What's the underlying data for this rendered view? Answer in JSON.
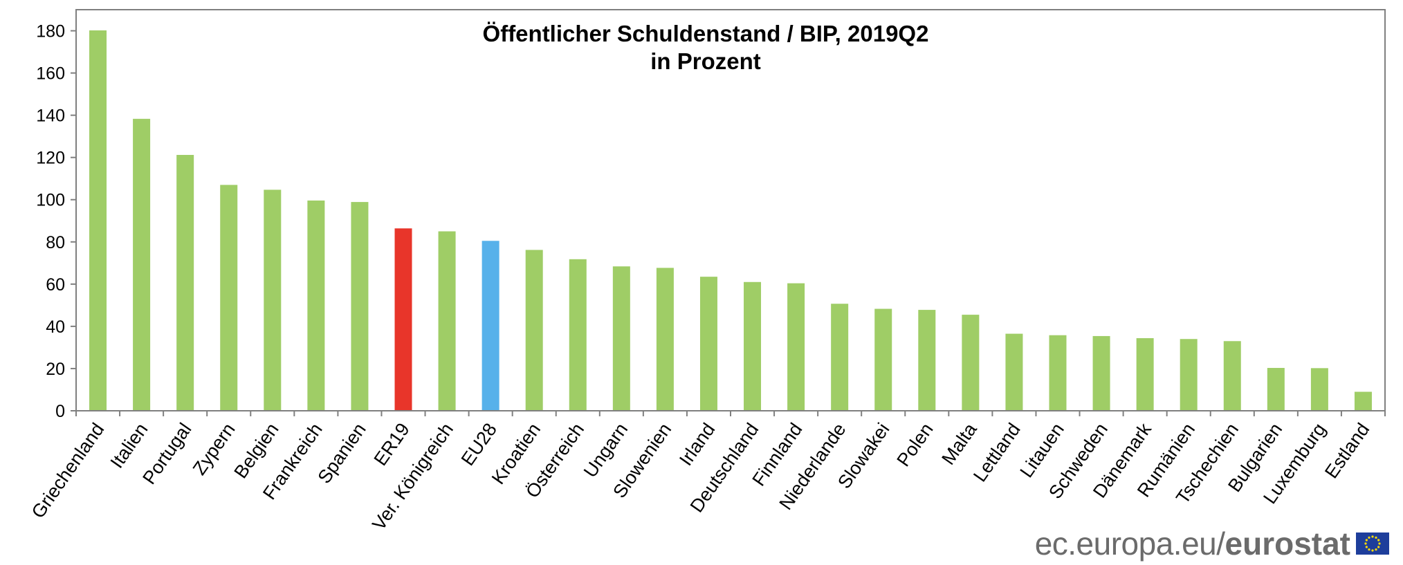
{
  "chart_data": {
    "type": "bar",
    "title": "Öffentlicher Schuldenstand / BIP, 2019Q2",
    "subtitle": "in Prozent",
    "xlabel": "",
    "ylabel": "",
    "ylim": [
      0,
      190
    ],
    "yticks": [
      0,
      20,
      40,
      60,
      80,
      100,
      120,
      140,
      160,
      180
    ],
    "grid": false,
    "categories": [
      "Griechenland",
      "Italien",
      "Portugal",
      "Zypern",
      "Belgien",
      "Frankreich",
      "Spanien",
      "ER19",
      "Ver. Königreich",
      "EU28",
      "Kroatien",
      "Österreich",
      "Ungarn",
      "Slowenien",
      "Irland",
      "Deutschland",
      "Finnland",
      "Niederlande",
      "Slowakei",
      "Polen",
      "Malta",
      "Lettland",
      "Litauen",
      "Schweden",
      "Dänemark",
      "Rumänien",
      "Tschechien",
      "Bulgarien",
      "Luxemburg",
      "Estland"
    ],
    "values": [
      180.2,
      138.3,
      121.2,
      107.0,
      104.7,
      99.6,
      98.9,
      86.4,
      85.0,
      80.5,
      76.2,
      71.8,
      68.4,
      67.7,
      63.5,
      61.0,
      60.4,
      50.7,
      48.3,
      47.8,
      45.5,
      36.5,
      35.8,
      35.4,
      34.4,
      34.0,
      33.0,
      20.3,
      20.2,
      9.0
    ],
    "bar_colors": {
      "default": "#9fcd66",
      "ER19": "#e8352a",
      "EU28": "#57b1ea"
    }
  },
  "brand": {
    "site": "ec.europa.eu/",
    "name": "eurostat",
    "flag_icon": "eu-flag-icon",
    "flag_color": "#1e3e9b",
    "star_color": "#ffdd00"
  }
}
